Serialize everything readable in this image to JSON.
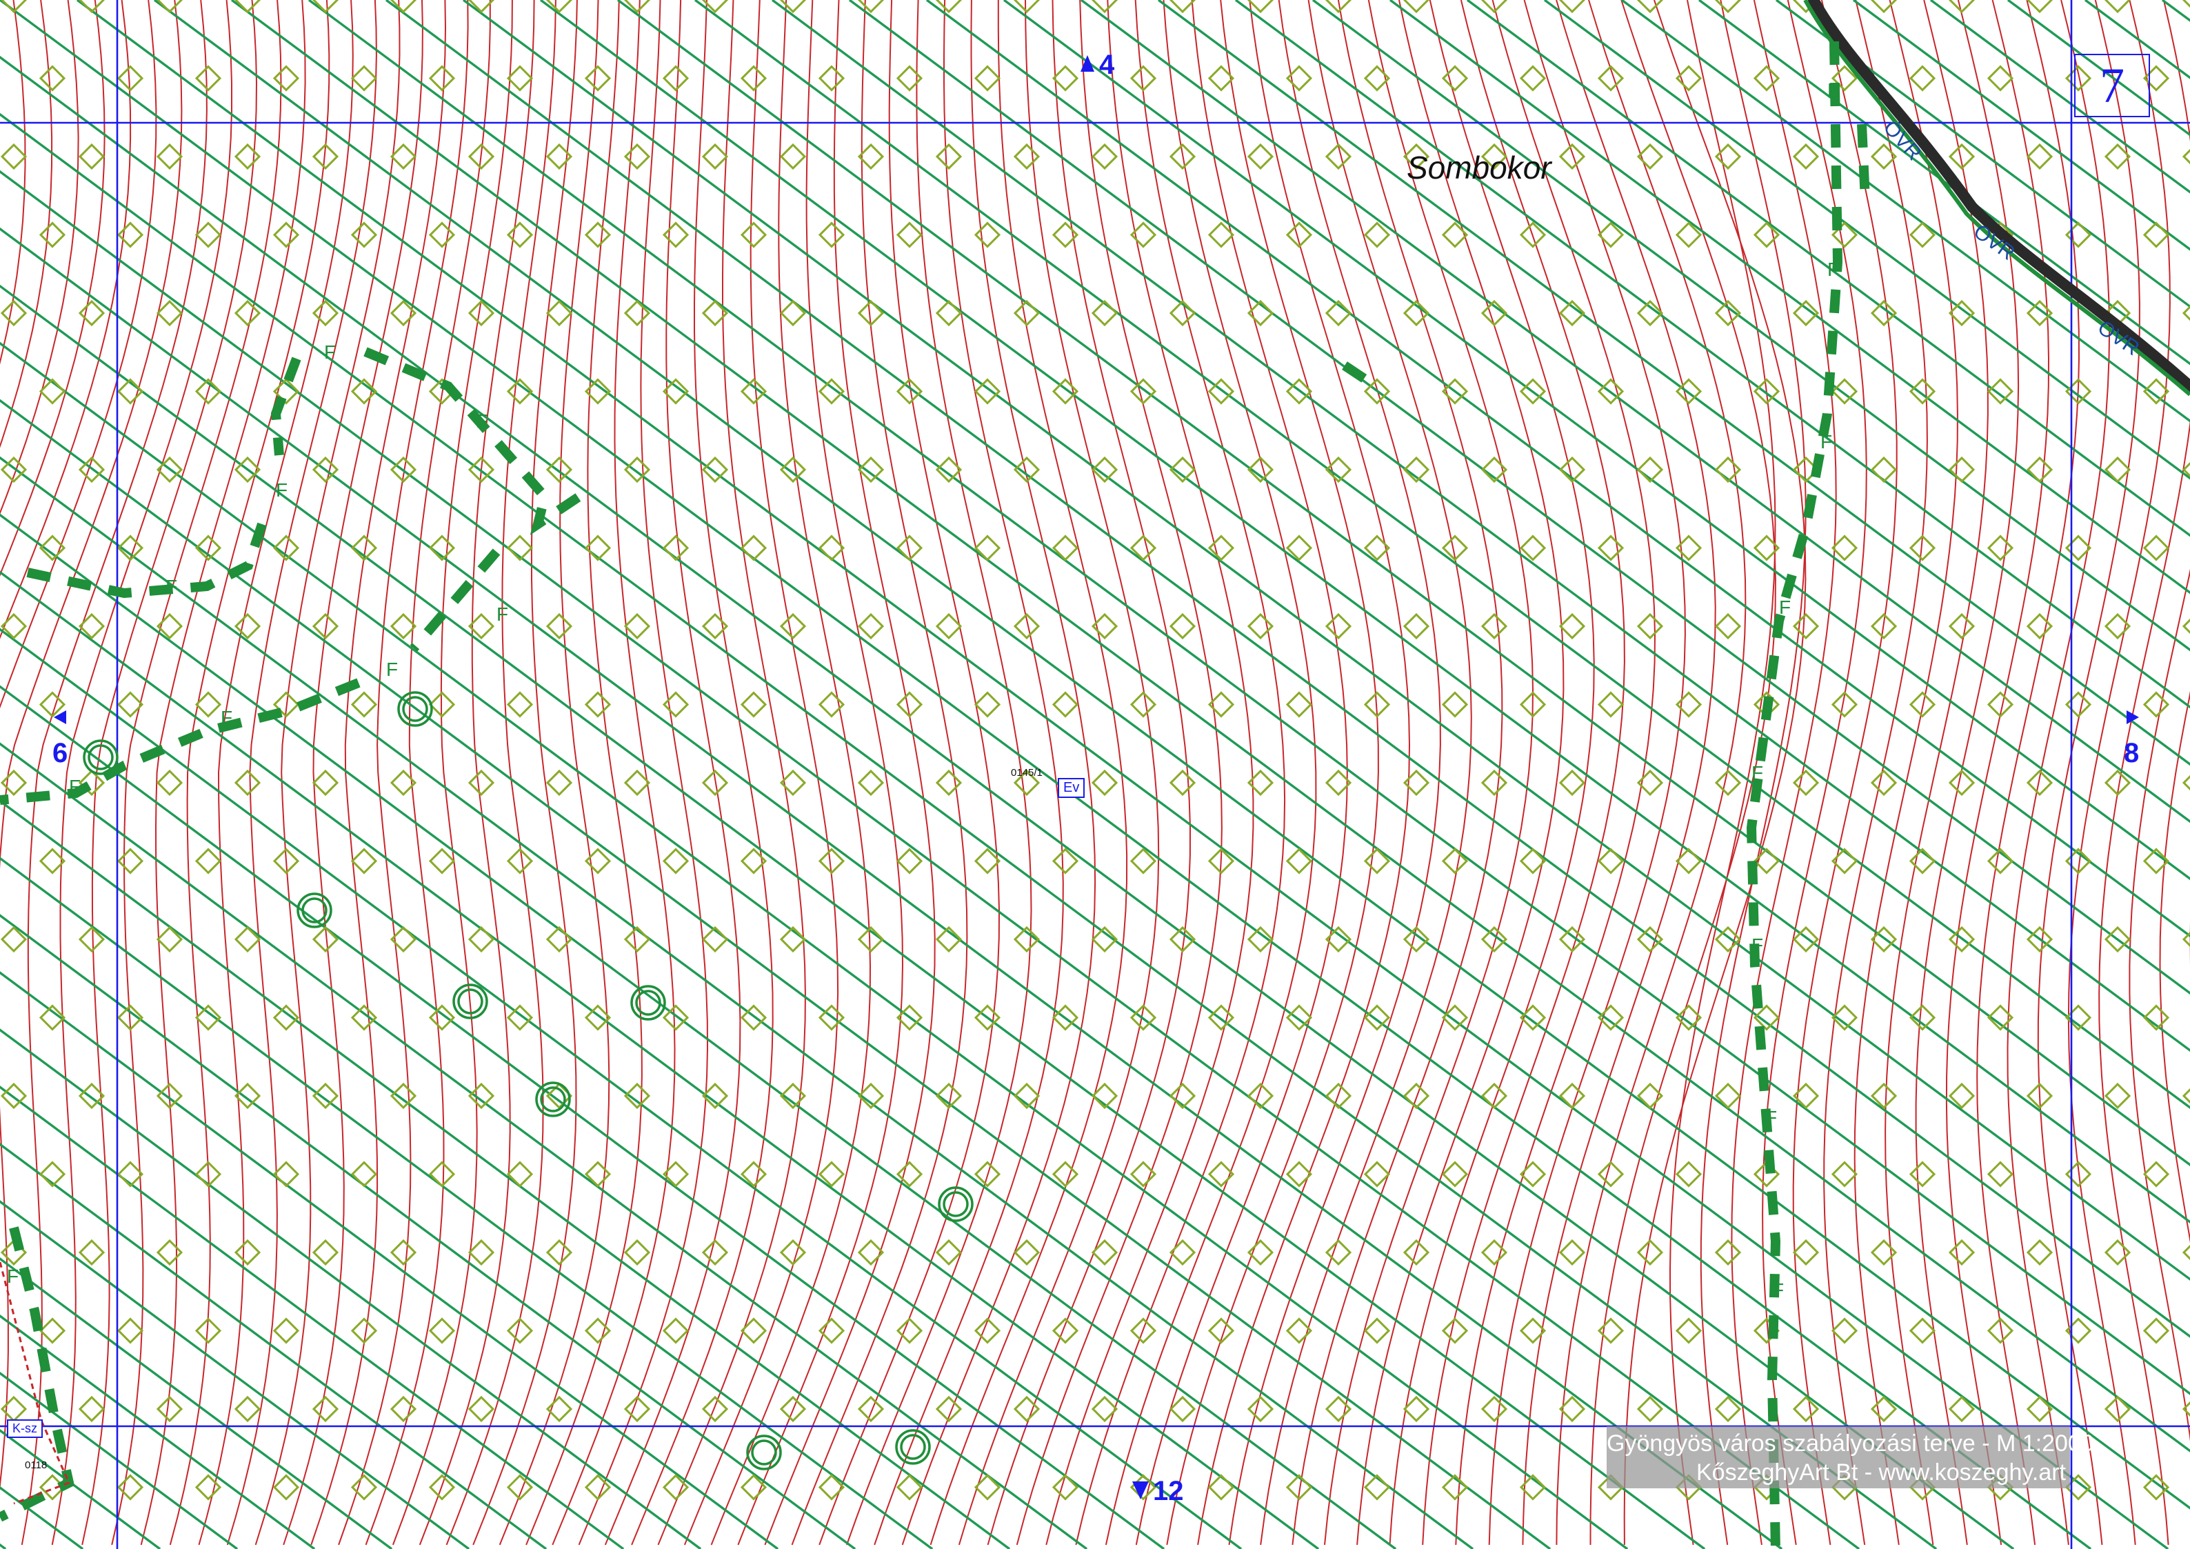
{
  "map": {
    "sheet_number": "7",
    "place_name": "Sombokor",
    "neighbors": {
      "north": "4",
      "west": "6",
      "east": "8",
      "south": "12"
    },
    "zone_codes": [
      "Ev",
      "K-sz"
    ],
    "parcel_ids": [
      "0145/1",
      "0118"
    ],
    "fence_label": "F",
    "road_label": "OVR",
    "credit": {
      "line1": "Gyöngyös város szabályozási terve - M 1:2000",
      "line2": "KőszeghyArt Bt - www.koszeghy.art"
    },
    "colors": {
      "contour": "#c8262a",
      "forest_hatch": "#1f9a55",
      "forest_symbol": "#8aaa2a",
      "grid": "#1a1aee",
      "fence": "#1f8f3a",
      "background": "#ffffff"
    },
    "icons": [
      "north-arrow-icon",
      "west-arrow-icon",
      "east-arrow-icon",
      "south-arrow-icon",
      "tree-circle-icon",
      "forest-diamond-icon"
    ]
  }
}
